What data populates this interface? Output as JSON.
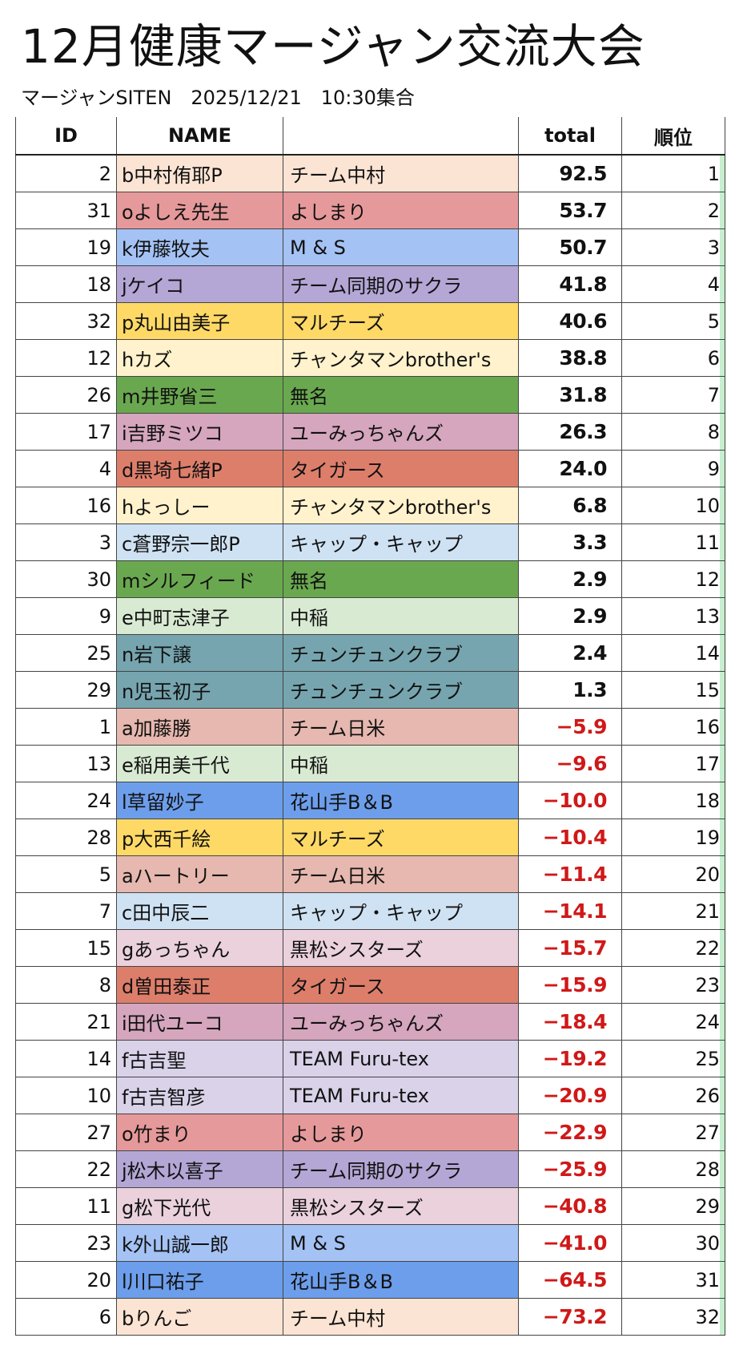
{
  "title": "12月健康マージャン交流大会",
  "subtitle": "マージャンSITEN　2025/12/21　10:30集合",
  "columns": {
    "id": "ID",
    "name": "NAME",
    "team": "",
    "total": "total",
    "rank": "順位"
  },
  "rows": [
    {
      "id": "2",
      "name": "b中村侑耶P",
      "team": "チーム中村",
      "total": "92.5",
      "rank": "1",
      "color": "#fce4d4"
    },
    {
      "id": "31",
      "name": "oよしえ先生",
      "team": "よしまり",
      "total": "53.7",
      "rank": "2",
      "color": "#e6999a"
    },
    {
      "id": "19",
      "name": "k伊藤牧夫",
      "team": "M & S",
      "total": "50.7",
      "rank": "3",
      "color": "#a4c2f4"
    },
    {
      "id": "18",
      "name": "jケイコ",
      "team": "チーム同期のサクラ",
      "total": "41.8",
      "rank": "4",
      "color": "#b4a7d6"
    },
    {
      "id": "32",
      "name": "p丸山由美子",
      "team": "マルチーズ",
      "total": "40.6",
      "rank": "5",
      "color": "#ffd966"
    },
    {
      "id": "12",
      "name": "hカズ",
      "team": "チャンタマンbrother's",
      "total": "38.8",
      "rank": "6",
      "color": "#fff2cc"
    },
    {
      "id": "26",
      "name": "m井野省三",
      "team": "無名",
      "total": "31.8",
      "rank": "7",
      "color": "#6aa84f"
    },
    {
      "id": "17",
      "name": "i吉野ミツコ",
      "team": "ユーみっちゃんズ",
      "total": "26.3",
      "rank": "8",
      "color": "#d5a6bd"
    },
    {
      "id": "4",
      "name": "d黒埼七緒P",
      "team": "タイガース",
      "total": "24.0",
      "rank": "9",
      "color": "#dd7e6b"
    },
    {
      "id": "16",
      "name": "hよっしー",
      "team": "チャンタマンbrother's",
      "total": "6.8",
      "rank": "10",
      "color": "#fff2cc"
    },
    {
      "id": "3",
      "name": "c蒼野宗一郎P",
      "team": "キャップ・キャップ",
      "total": "3.3",
      "rank": "11",
      "color": "#cfe2f3"
    },
    {
      "id": "30",
      "name": "mシルフィード",
      "team": "無名",
      "total": "2.9",
      "rank": "12",
      "color": "#6aa84f"
    },
    {
      "id": "9",
      "name": "e中町志津子",
      "team": "中稲",
      "total": "2.9",
      "rank": "13",
      "color": "#d9ead3"
    },
    {
      "id": "25",
      "name": "n岩下譲",
      "team": "チュンチュンクラブ",
      "total": "2.4",
      "rank": "14",
      "color": "#76a5af"
    },
    {
      "id": "29",
      "name": "n児玉初子",
      "team": "チュンチュンクラブ",
      "total": "1.3",
      "rank": "15",
      "color": "#76a5af"
    },
    {
      "id": "1",
      "name": "a加藤勝",
      "team": "チーム日米",
      "total": "−5.9",
      "rank": "16",
      "color": "#e6b8af"
    },
    {
      "id": "13",
      "name": "e稲用美千代",
      "team": "中稲",
      "total": "−9.6",
      "rank": "17",
      "color": "#d9ead3"
    },
    {
      "id": "24",
      "name": "l草留妙子",
      "team": "花山手B＆B",
      "total": "−10.0",
      "rank": "18",
      "color": "#6d9eeb"
    },
    {
      "id": "28",
      "name": "p大西千絵",
      "team": "マルチーズ",
      "total": "−10.4",
      "rank": "19",
      "color": "#ffd966"
    },
    {
      "id": "5",
      "name": "aハートリー",
      "team": "チーム日米",
      "total": "−11.4",
      "rank": "20",
      "color": "#e6b8af"
    },
    {
      "id": "7",
      "name": "c田中辰二",
      "team": "キャップ・キャップ",
      "total": "−14.1",
      "rank": "21",
      "color": "#cfe2f3"
    },
    {
      "id": "15",
      "name": "gあっちゃん",
      "team": "黒松シスターズ",
      "total": "−15.7",
      "rank": "22",
      "color": "#ead1dc"
    },
    {
      "id": "8",
      "name": "d曽田泰正",
      "team": "タイガース",
      "total": "−15.9",
      "rank": "23",
      "color": "#dd7e6b"
    },
    {
      "id": "21",
      "name": "i田代ユーコ",
      "team": "ユーみっちゃんズ",
      "total": "−18.4",
      "rank": "24",
      "color": "#d5a6bd"
    },
    {
      "id": "14",
      "name": "f古吉聖",
      "team": "TEAM Furu-tex",
      "total": "−19.2",
      "rank": "25",
      "color": "#d9d2e9"
    },
    {
      "id": "10",
      "name": "f古吉智彦",
      "team": "TEAM Furu-tex",
      "total": "−20.9",
      "rank": "26",
      "color": "#d9d2e9"
    },
    {
      "id": "27",
      "name": "o竹まり",
      "team": "よしまり",
      "total": "−22.9",
      "rank": "27",
      "color": "#e6999a"
    },
    {
      "id": "22",
      "name": "j松木以喜子",
      "team": "チーム同期のサクラ",
      "total": "−25.9",
      "rank": "28",
      "color": "#b4a7d6"
    },
    {
      "id": "11",
      "name": "g松下光代",
      "team": "黒松シスターズ",
      "total": "−40.8",
      "rank": "29",
      "color": "#ead1dc"
    },
    {
      "id": "23",
      "name": "k外山誠一郎",
      "team": "M & S",
      "total": "−41.0",
      "rank": "30",
      "color": "#a4c2f4"
    },
    {
      "id": "20",
      "name": "l川口祐子",
      "team": "花山手B＆B",
      "total": "−64.5",
      "rank": "31",
      "color": "#6d9eeb"
    },
    {
      "id": "6",
      "name": "bりんご",
      "team": "チーム中村",
      "total": "−73.2",
      "rank": "32",
      "color": "#fce4d4"
    }
  ]
}
